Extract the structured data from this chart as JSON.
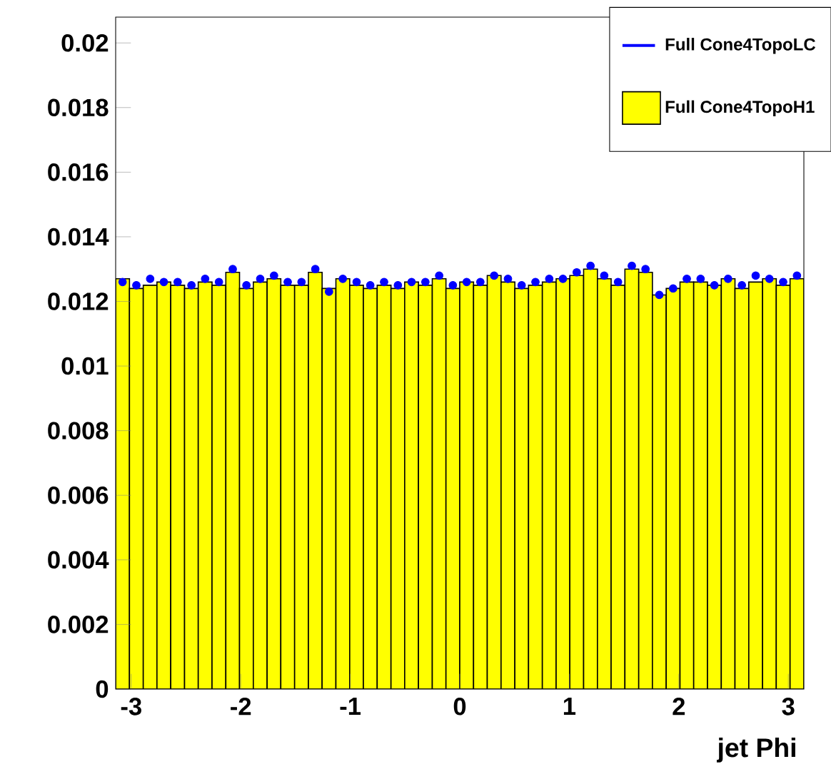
{
  "chart_data": {
    "type": "histogram",
    "xlabel": "jet Phi",
    "legend": "top right",
    "xlim": [
      -3.142,
      3.142
    ],
    "ylim": [
      0,
      0.0208
    ],
    "xticks": [
      -3,
      -2,
      -1,
      0,
      1,
      2,
      3
    ],
    "yticks": [
      0,
      0.002,
      0.004,
      0.006,
      0.008,
      0.01,
      0.012,
      0.014,
      0.016,
      0.018,
      0.02
    ],
    "bins": [
      -3.142,
      -3.016,
      -2.89,
      -2.765,
      -2.639,
      -2.513,
      -2.388,
      -2.262,
      -2.136,
      -2.011,
      -1.885,
      -1.759,
      -1.634,
      -1.508,
      -1.382,
      -1.257,
      -1.131,
      -1.005,
      -0.88,
      -0.754,
      -0.628,
      -0.503,
      -0.377,
      -0.251,
      -0.126,
      0,
      0.126,
      0.251,
      0.377,
      0.503,
      0.628,
      0.754,
      0.88,
      1.005,
      1.131,
      1.257,
      1.382,
      1.508,
      1.634,
      1.759,
      1.885,
      2.011,
      2.136,
      2.262,
      2.388,
      2.513,
      2.639,
      2.765,
      2.89,
      3.016,
      3.142
    ],
    "series": [
      {
        "name": "Full Cone4TopoLC",
        "type": "scatter",
        "color": "#0000ff",
        "x": [
          -3.079,
          -2.953,
          -2.827,
          -2.702,
          -2.576,
          -2.45,
          -2.325,
          -2.199,
          -2.073,
          -1.948,
          -1.822,
          -1.696,
          -1.571,
          -1.445,
          -1.319,
          -1.194,
          -1.068,
          -0.942,
          -0.817,
          -0.691,
          -0.565,
          -0.44,
          -0.314,
          -0.188,
          -0.063,
          0.063,
          0.188,
          0.314,
          0.44,
          0.565,
          0.691,
          0.817,
          0.942,
          1.068,
          1.194,
          1.319,
          1.445,
          1.571,
          1.696,
          1.822,
          1.948,
          2.073,
          2.199,
          2.325,
          2.45,
          2.576,
          2.702,
          2.827,
          2.953,
          3.079
        ],
        "values": [
          0.0126,
          0.0125,
          0.0127,
          0.0126,
          0.0126,
          0.0125,
          0.0127,
          0.0126,
          0.013,
          0.0125,
          0.0127,
          0.0128,
          0.0126,
          0.0126,
          0.013,
          0.0123,
          0.0127,
          0.0126,
          0.0125,
          0.0126,
          0.0125,
          0.0126,
          0.0126,
          0.0128,
          0.0125,
          0.0126,
          0.0126,
          0.0128,
          0.0127,
          0.0125,
          0.0126,
          0.0127,
          0.0127,
          0.0129,
          0.0131,
          0.0128,
          0.0126,
          0.0131,
          0.013,
          0.0122,
          0.0124,
          0.0127,
          0.0127,
          0.0125,
          0.0127,
          0.0125,
          0.0128,
          0.0127,
          0.0126,
          0.0128
        ],
        "errors": [
          0.0001,
          0.0001,
          0.0001,
          0.0001,
          0.0001,
          0.0001,
          0.0001,
          0.0001,
          0.0001,
          0.0001,
          0.0001,
          0.0001,
          0.0001,
          0.0001,
          0.0001,
          0.0001,
          0.0001,
          0.0001,
          0.0001,
          0.0001,
          0.0001,
          0.0001,
          0.0001,
          0.0001,
          0.0001,
          0.0001,
          0.0001,
          0.0001,
          0.0001,
          0.0001,
          0.0001,
          0.0001,
          0.0001,
          0.0001,
          0.0001,
          0.0001,
          0.0001,
          0.0001,
          0.0001,
          0.0001,
          0.0001,
          0.0001,
          0.0001,
          0.0001,
          0.0001,
          0.0001,
          0.0001,
          0.0001,
          0.0001,
          0.0001
        ]
      },
      {
        "name": "Full Cone4TopoH1",
        "color": "#ffff00",
        "values": [
          0.0127,
          0.0124,
          0.0125,
          0.0126,
          0.0125,
          0.0124,
          0.0126,
          0.0125,
          0.0129,
          0.0124,
          0.0126,
          0.0127,
          0.0125,
          0.0125,
          0.0129,
          0.0124,
          0.0127,
          0.0125,
          0.0124,
          0.0125,
          0.0124,
          0.0126,
          0.0125,
          0.0127,
          0.0124,
          0.0126,
          0.0125,
          0.0128,
          0.0126,
          0.0124,
          0.0125,
          0.0126,
          0.0127,
          0.0128,
          0.013,
          0.0127,
          0.0125,
          0.013,
          0.0129,
          0.0122,
          0.0124,
          0.0126,
          0.0126,
          0.0125,
          0.0127,
          0.0124,
          0.0126,
          0.0127,
          0.0125,
          0.0127
        ]
      }
    ]
  }
}
